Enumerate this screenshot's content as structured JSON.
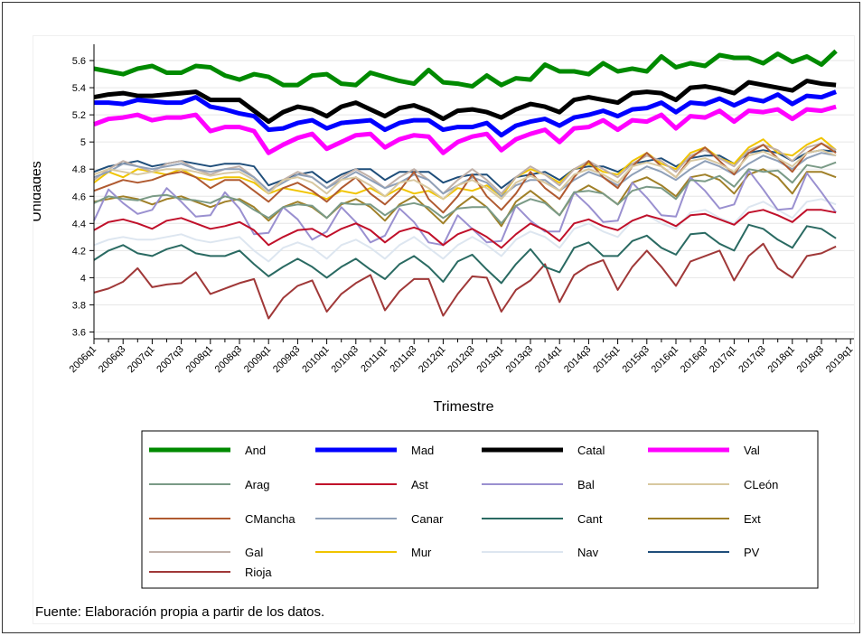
{
  "chart_data": {
    "type": "line",
    "xlabel": "Trimestre",
    "ylabel": "Unidades",
    "ylim": [
      3.55,
      5.72
    ],
    "yticks": [
      3.6,
      3.8,
      4,
      4.2,
      4.4,
      4.6,
      4.8,
      5,
      5.2,
      5.4,
      5.6
    ],
    "ytick_labels": [
      "3.6",
      "3.8",
      "4",
      "4.2",
      "4.4",
      "4.6",
      "4.8",
      "5",
      "5.2",
      "5.4",
      "5.6"
    ],
    "x_start": "2006q1",
    "xtick_labels": [
      "2006q1",
      "2006q3",
      "2007q1",
      "2007q3",
      "2008q1",
      "2008q3",
      "2009q1",
      "2009q3",
      "2010q1",
      "2010q3",
      "2011q1",
      "2011q3",
      "2012q1",
      "2012q3",
      "2013q1",
      "2013q3",
      "2014q1",
      "2014q3",
      "2015q1",
      "2015q3",
      "2016q1",
      "2016q3",
      "2017q1",
      "2017q3",
      "2018q1",
      "2018q3",
      "2019q1"
    ],
    "grid": true,
    "legend_position": "bottom",
    "note": "Fuente: Elaboración propia a partir de los datos.",
    "series": [
      {
        "name": "And",
        "color": "#008a00",
        "width": 5,
        "values": [
          5.54,
          5.52,
          5.5,
          5.54,
          5.56,
          5.51,
          5.51,
          5.56,
          5.55,
          5.49,
          5.46,
          5.5,
          5.48,
          5.42,
          5.42,
          5.49,
          5.5,
          5.43,
          5.42,
          5.51,
          5.48,
          5.45,
          5.43,
          5.53,
          5.44,
          5.43,
          5.41,
          5.49,
          5.42,
          5.47,
          5.46,
          5.57,
          5.52,
          5.52,
          5.5,
          5.58,
          5.52,
          5.54,
          5.52,
          5.63,
          5.55,
          5.58,
          5.56,
          5.64,
          5.62,
          5.62,
          5.58,
          5.65,
          5.59,
          5.63,
          5.57,
          5.67
        ]
      },
      {
        "name": "Mad",
        "color": "#0000ff",
        "width": 5,
        "values": [
          5.29,
          5.29,
          5.28,
          5.31,
          5.3,
          5.29,
          5.29,
          5.33,
          5.26,
          5.24,
          5.21,
          5.19,
          5.09,
          5.1,
          5.14,
          5.16,
          5.1,
          5.14,
          5.15,
          5.16,
          5.09,
          5.14,
          5.16,
          5.16,
          5.09,
          5.11,
          5.11,
          5.14,
          5.05,
          5.12,
          5.15,
          5.17,
          5.12,
          5.18,
          5.2,
          5.23,
          5.19,
          5.24,
          5.25,
          5.29,
          5.22,
          5.29,
          5.28,
          5.32,
          5.27,
          5.32,
          5.3,
          5.35,
          5.28,
          5.34,
          5.33,
          5.37
        ]
      },
      {
        "name": "Catal",
        "color": "#000000",
        "width": 5,
        "values": [
          5.33,
          5.35,
          5.36,
          5.34,
          5.34,
          5.35,
          5.36,
          5.37,
          5.31,
          5.31,
          5.31,
          5.23,
          5.15,
          5.22,
          5.26,
          5.24,
          5.19,
          5.26,
          5.29,
          5.24,
          5.19,
          5.25,
          5.27,
          5.23,
          5.17,
          5.23,
          5.24,
          5.22,
          5.18,
          5.24,
          5.28,
          5.26,
          5.22,
          5.31,
          5.33,
          5.31,
          5.29,
          5.36,
          5.37,
          5.36,
          5.31,
          5.4,
          5.41,
          5.39,
          5.36,
          5.44,
          5.42,
          5.4,
          5.38,
          5.45,
          5.43,
          5.42
        ]
      },
      {
        "name": "Val",
        "color": "#ff00ff",
        "width": 5,
        "values": [
          5.13,
          5.17,
          5.18,
          5.2,
          5.16,
          5.18,
          5.18,
          5.2,
          5.08,
          5.11,
          5.11,
          5.08,
          4.92,
          4.98,
          5.03,
          5.06,
          4.95,
          5.0,
          5.05,
          5.06,
          4.96,
          5.02,
          5.05,
          5.04,
          4.92,
          5.0,
          5.04,
          5.06,
          4.94,
          5.02,
          5.06,
          5.09,
          5.0,
          5.1,
          5.11,
          5.16,
          5.09,
          5.16,
          5.15,
          5.2,
          5.1,
          5.19,
          5.18,
          5.23,
          5.15,
          5.23,
          5.22,
          5.24,
          5.17,
          5.24,
          5.23,
          5.26
        ]
      },
      {
        "name": "Arag",
        "color": "#7a9a86",
        "width": 2,
        "values": [
          4.55,
          4.6,
          4.58,
          4.57,
          4.6,
          4.61,
          4.58,
          4.57,
          4.55,
          4.6,
          4.57,
          4.5,
          4.44,
          4.52,
          4.54,
          4.53,
          4.44,
          4.55,
          4.54,
          4.54,
          4.46,
          4.53,
          4.55,
          4.52,
          4.44,
          4.51,
          4.52,
          4.52,
          4.4,
          4.53,
          4.58,
          4.55,
          4.46,
          4.63,
          4.64,
          4.62,
          4.54,
          4.64,
          4.67,
          4.66,
          4.58,
          4.72,
          4.71,
          4.75,
          4.67,
          4.8,
          4.78,
          4.79,
          4.7,
          4.83,
          4.81,
          4.85
        ]
      },
      {
        "name": "Ast",
        "color": "#c0102a",
        "width": 2,
        "values": [
          4.35,
          4.41,
          4.43,
          4.4,
          4.36,
          4.42,
          4.44,
          4.4,
          4.36,
          4.38,
          4.41,
          4.35,
          4.24,
          4.3,
          4.35,
          4.36,
          4.3,
          4.36,
          4.4,
          4.35,
          4.26,
          4.34,
          4.37,
          4.33,
          4.24,
          4.32,
          4.36,
          4.3,
          4.22,
          4.32,
          4.4,
          4.35,
          4.27,
          4.4,
          4.43,
          4.38,
          4.35,
          4.42,
          4.46,
          4.43,
          4.38,
          4.46,
          4.47,
          4.43,
          4.39,
          4.48,
          4.5,
          4.46,
          4.41,
          4.5,
          4.5,
          4.48
        ]
      },
      {
        "name": "Bal",
        "color": "#9a90d0",
        "width": 2,
        "values": [
          4.42,
          4.65,
          4.55,
          4.47,
          4.5,
          4.66,
          4.56,
          4.45,
          4.46,
          4.63,
          4.51,
          4.32,
          4.33,
          4.52,
          4.43,
          4.28,
          4.34,
          4.52,
          4.41,
          4.26,
          4.31,
          4.51,
          4.41,
          4.26,
          4.24,
          4.46,
          4.36,
          4.26,
          4.27,
          4.53,
          4.42,
          4.34,
          4.34,
          4.63,
          4.53,
          4.41,
          4.42,
          4.7,
          4.59,
          4.46,
          4.45,
          4.74,
          4.64,
          4.51,
          4.54,
          4.79,
          4.65,
          4.5,
          4.51,
          4.77,
          4.63,
          4.48
        ]
      },
      {
        "name": "CLeón",
        "color": "#d8c8a0",
        "width": 2,
        "values": [
          4.76,
          4.8,
          4.78,
          4.76,
          4.78,
          4.8,
          4.8,
          4.78,
          4.75,
          4.77,
          4.78,
          4.72,
          4.62,
          4.72,
          4.74,
          4.7,
          4.62,
          4.72,
          4.74,
          4.68,
          4.6,
          4.7,
          4.72,
          4.66,
          4.58,
          4.68,
          4.72,
          4.66,
          4.58,
          4.7,
          4.75,
          4.7,
          4.64,
          4.76,
          4.8,
          4.76,
          4.7,
          4.82,
          4.85,
          4.82,
          4.74,
          4.86,
          4.88,
          4.84,
          4.78,
          4.9,
          4.93,
          4.88,
          4.82,
          4.92,
          4.94,
          4.9
        ]
      },
      {
        "name": "CMancha",
        "color": "#b05a30",
        "width": 2,
        "values": [
          4.64,
          4.68,
          4.72,
          4.7,
          4.72,
          4.76,
          4.78,
          4.74,
          4.66,
          4.72,
          4.72,
          4.64,
          4.56,
          4.66,
          4.7,
          4.64,
          4.56,
          4.66,
          4.74,
          4.62,
          4.54,
          4.64,
          4.78,
          4.58,
          4.48,
          4.6,
          4.76,
          4.6,
          4.5,
          4.62,
          4.78,
          4.66,
          4.58,
          4.74,
          4.86,
          4.74,
          4.66,
          4.82,
          4.92,
          4.82,
          4.74,
          4.88,
          4.96,
          4.86,
          4.76,
          4.92,
          4.98,
          4.88,
          4.78,
          4.92,
          4.99,
          4.92
        ]
      },
      {
        "name": "Canar",
        "color": "#8fa0b8",
        "width": 2,
        "values": [
          4.74,
          4.78,
          4.84,
          4.82,
          4.8,
          4.82,
          4.84,
          4.8,
          4.78,
          4.8,
          4.8,
          4.74,
          4.64,
          4.7,
          4.76,
          4.74,
          4.66,
          4.72,
          4.78,
          4.72,
          4.66,
          4.7,
          4.76,
          4.72,
          4.62,
          4.68,
          4.74,
          4.7,
          4.6,
          4.68,
          4.72,
          4.72,
          4.64,
          4.72,
          4.78,
          4.74,
          4.68,
          4.76,
          4.82,
          4.78,
          4.72,
          4.8,
          4.86,
          4.82,
          4.76,
          4.84,
          4.9,
          4.86,
          4.8,
          4.88,
          4.92,
          4.9
        ]
      },
      {
        "name": "Cant",
        "color": "#2a6a62",
        "width": 2,
        "values": [
          4.13,
          4.2,
          4.24,
          4.18,
          4.16,
          4.21,
          4.24,
          4.18,
          4.16,
          4.16,
          4.2,
          4.1,
          4.01,
          4.08,
          4.14,
          4.08,
          4.0,
          4.08,
          4.14,
          4.06,
          3.99,
          4.1,
          4.16,
          4.08,
          3.97,
          4.12,
          4.17,
          4.06,
          3.96,
          4.1,
          4.21,
          4.08,
          4.04,
          4.22,
          4.26,
          4.16,
          4.16,
          4.27,
          4.31,
          4.22,
          4.17,
          4.32,
          4.33,
          4.25,
          4.2,
          4.39,
          4.36,
          4.28,
          4.22,
          4.38,
          4.36,
          4.29
        ]
      },
      {
        "name": "Ext",
        "color": "#a08028",
        "width": 2,
        "values": [
          4.56,
          4.58,
          4.6,
          4.58,
          4.54,
          4.58,
          4.6,
          4.56,
          4.52,
          4.56,
          4.58,
          4.52,
          4.42,
          4.52,
          4.56,
          4.52,
          4.44,
          4.54,
          4.58,
          4.52,
          4.42,
          4.54,
          4.6,
          4.5,
          4.4,
          4.52,
          4.6,
          4.52,
          4.38,
          4.56,
          4.64,
          4.56,
          4.46,
          4.62,
          4.68,
          4.62,
          4.54,
          4.7,
          4.74,
          4.68,
          4.6,
          4.74,
          4.76,
          4.72,
          4.62,
          4.76,
          4.8,
          4.74,
          4.62,
          4.78,
          4.78,
          4.74
        ]
      },
      {
        "name": "Gal",
        "color": "#c0b0a8",
        "width": 2,
        "values": [
          4.72,
          4.8,
          4.86,
          4.82,
          4.78,
          4.84,
          4.86,
          4.8,
          4.76,
          4.8,
          4.82,
          4.74,
          4.64,
          4.72,
          4.78,
          4.74,
          4.66,
          4.74,
          4.8,
          4.74,
          4.66,
          4.74,
          4.8,
          4.72,
          4.62,
          4.72,
          4.8,
          4.72,
          4.62,
          4.74,
          4.82,
          4.76,
          4.68,
          4.8,
          4.86,
          4.8,
          4.74,
          4.84,
          4.9,
          4.86,
          4.78,
          4.9,
          4.94,
          4.88,
          4.82,
          4.94,
          4.98,
          4.94,
          4.86,
          4.96,
          4.99,
          4.94
        ]
      },
      {
        "name": "Mur",
        "color": "#f0c400",
        "width": 2,
        "values": [
          4.7,
          4.78,
          4.74,
          4.8,
          4.78,
          4.76,
          4.8,
          4.74,
          4.72,
          4.74,
          4.74,
          4.7,
          4.62,
          4.66,
          4.64,
          4.62,
          4.58,
          4.64,
          4.62,
          4.66,
          4.6,
          4.66,
          4.62,
          4.64,
          4.58,
          4.66,
          4.64,
          4.68,
          4.6,
          4.74,
          4.8,
          4.76,
          4.7,
          4.8,
          4.84,
          4.78,
          4.76,
          4.86,
          4.92,
          4.84,
          4.8,
          4.92,
          4.96,
          4.88,
          4.84,
          4.96,
          5.02,
          4.92,
          4.9,
          4.98,
          5.03,
          4.94
        ]
      },
      {
        "name": "Nav",
        "color": "#dde6f0",
        "width": 2,
        "values": [
          4.24,
          4.28,
          4.3,
          4.28,
          4.28,
          4.3,
          4.32,
          4.28,
          4.26,
          4.28,
          4.3,
          4.2,
          4.12,
          4.22,
          4.26,
          4.22,
          4.14,
          4.24,
          4.28,
          4.22,
          4.14,
          4.24,
          4.3,
          4.22,
          4.14,
          4.24,
          4.3,
          4.24,
          4.16,
          4.28,
          4.34,
          4.3,
          4.22,
          4.36,
          4.4,
          4.34,
          4.3,
          4.42,
          4.46,
          4.4,
          4.36,
          4.48,
          4.5,
          4.44,
          4.4,
          4.52,
          4.56,
          4.5,
          4.44,
          4.56,
          4.58,
          4.54
        ]
      },
      {
        "name": "PV",
        "color": "#1f4e7a",
        "width": 2,
        "values": [
          4.78,
          4.82,
          4.84,
          4.86,
          4.82,
          4.84,
          4.86,
          4.84,
          4.82,
          4.84,
          4.84,
          4.82,
          4.68,
          4.72,
          4.76,
          4.78,
          4.7,
          4.76,
          4.8,
          4.8,
          4.72,
          4.78,
          4.78,
          4.78,
          4.7,
          4.74,
          4.76,
          4.76,
          4.66,
          4.74,
          4.76,
          4.78,
          4.72,
          4.8,
          4.82,
          4.82,
          4.78,
          4.84,
          4.86,
          4.88,
          4.82,
          4.88,
          4.9,
          4.9,
          4.84,
          4.92,
          4.94,
          4.92,
          4.86,
          4.92,
          4.94,
          4.93
        ]
      },
      {
        "name": "Rioja",
        "color": "#a03838",
        "width": 2,
        "values": [
          3.89,
          3.92,
          3.97,
          4.07,
          3.93,
          3.95,
          3.96,
          4.04,
          3.88,
          3.92,
          3.96,
          3.99,
          3.7,
          3.85,
          3.94,
          3.98,
          3.75,
          3.88,
          3.96,
          4.02,
          3.76,
          3.9,
          3.99,
          3.99,
          3.72,
          3.88,
          4.01,
          4.0,
          3.75,
          3.91,
          3.98,
          4.1,
          3.82,
          4.02,
          4.09,
          4.13,
          3.91,
          4.08,
          4.2,
          4.08,
          3.94,
          4.12,
          4.16,
          4.2,
          3.98,
          4.16,
          4.25,
          4.07,
          4.0,
          4.16,
          4.18,
          4.23
        ]
      }
    ]
  }
}
